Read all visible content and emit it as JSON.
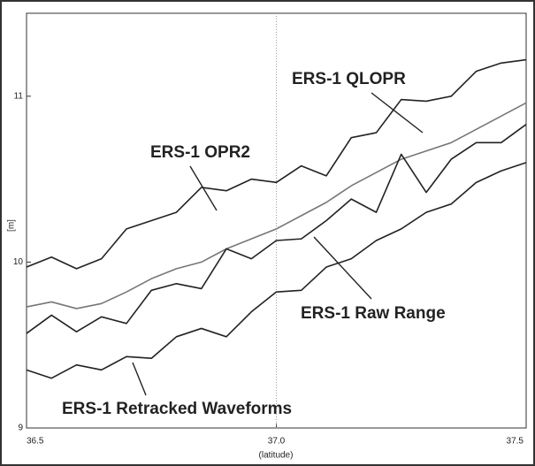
{
  "chart_data": {
    "type": "line",
    "x": [
      36.5,
      36.55,
      36.6,
      36.65,
      36.7,
      36.75,
      36.8,
      36.85,
      36.9,
      36.95,
      37.0,
      37.05,
      37.1,
      37.15,
      37.2,
      37.25,
      37.3,
      37.35,
      37.4,
      37.45,
      37.5
    ],
    "series": [
      {
        "name": "ERS-1 OPR2",
        "color": "#222222",
        "values": [
          9.97,
          10.03,
          9.96,
          10.02,
          10.2,
          10.25,
          10.3,
          10.45,
          10.43,
          10.5,
          10.48,
          10.58,
          10.52,
          10.75,
          10.78,
          10.98,
          10.97,
          11.0,
          11.15,
          11.2,
          11.22
        ]
      },
      {
        "name": "ERS-1 QLOPR",
        "color": "#777777",
        "values": [
          9.73,
          9.76,
          9.72,
          9.75,
          9.82,
          9.9,
          9.96,
          10.0,
          10.08,
          10.14,
          10.2,
          10.28,
          10.36,
          10.46,
          10.54,
          10.62,
          10.67,
          10.72,
          10.8,
          10.88,
          10.96
        ]
      },
      {
        "name": "ERS-1 Raw Range",
        "color": "#222222",
        "values": [
          9.57,
          9.68,
          9.58,
          9.67,
          9.63,
          9.83,
          9.87,
          9.84,
          10.08,
          10.02,
          10.13,
          10.14,
          10.25,
          10.38,
          10.3,
          10.65,
          10.42,
          10.62,
          10.72,
          10.72,
          10.83
        ]
      },
      {
        "name": "ERS-1 Retracked Waveforms",
        "color": "#222222",
        "values": [
          9.35,
          9.3,
          9.38,
          9.35,
          9.43,
          9.42,
          9.55,
          9.6,
          9.55,
          9.7,
          9.82,
          9.83,
          9.97,
          10.02,
          10.13,
          10.2,
          10.3,
          10.35,
          10.48,
          10.55,
          10.6
        ]
      }
    ],
    "xlim": [
      36.5,
      37.5
    ],
    "ylim": [
      9,
      11.5
    ],
    "xticks": [
      36.5,
      {
        "value": 37,
        "label": "37.0"
      },
      37.5
    ],
    "yticks": [
      9,
      10,
      11
    ],
    "xlabel": "(latitude)",
    "ylabel": "[m]"
  }
}
